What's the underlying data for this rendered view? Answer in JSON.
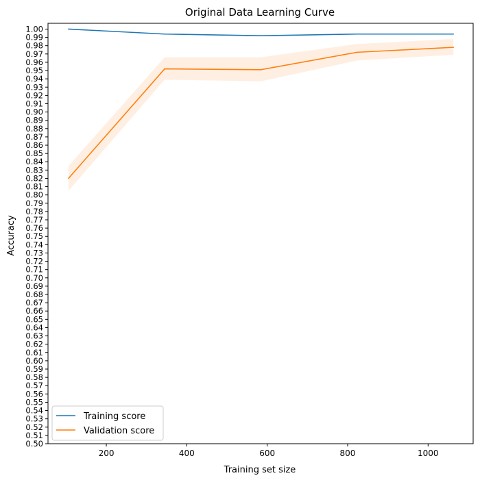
{
  "chart_data": {
    "type": "line",
    "title": "Original Data Learning Curve",
    "xlabel": "Training set size",
    "ylabel": "Accuracy",
    "xlim": [
      55,
      1112
    ],
    "ylim": [
      0.5,
      1.007
    ],
    "x_ticks": [
      200,
      400,
      600,
      800,
      1000
    ],
    "y_ticks": [
      0.5,
      0.51,
      0.52,
      0.53,
      0.54,
      0.55,
      0.56,
      0.57,
      0.58,
      0.59,
      0.6,
      0.61,
      0.62,
      0.63,
      0.64,
      0.65,
      0.66,
      0.67,
      0.68,
      0.69,
      0.7,
      0.71,
      0.72,
      0.73,
      0.74,
      0.75,
      0.76,
      0.77,
      0.78,
      0.79,
      0.8,
      0.81,
      0.82,
      0.83,
      0.84,
      0.85,
      0.86,
      0.87,
      0.88,
      0.89,
      0.9,
      0.91,
      0.92,
      0.93,
      0.94,
      0.95,
      0.96,
      0.97,
      0.98,
      0.99,
      1.0
    ],
    "grid": false,
    "legend": "lower-left",
    "x": [
      106,
      345,
      584,
      823,
      1063
    ],
    "series": [
      {
        "name": "Training score",
        "color": "#1f77b4",
        "values": [
          1.0,
          0.994,
          0.992,
          0.994,
          0.994
        ],
        "band_lower": [
          1.0,
          0.994,
          0.992,
          0.994,
          0.994
        ],
        "band_upper": [
          1.0,
          0.994,
          0.992,
          0.994,
          0.994
        ]
      },
      {
        "name": "Validation score",
        "color": "#ff7f0e",
        "values": [
          0.82,
          0.952,
          0.951,
          0.972,
          0.978
        ],
        "band_lower": [
          0.805,
          0.939,
          0.937,
          0.962,
          0.969
        ],
        "band_upper": [
          0.835,
          0.966,
          0.966,
          0.982,
          0.988
        ]
      }
    ]
  }
}
